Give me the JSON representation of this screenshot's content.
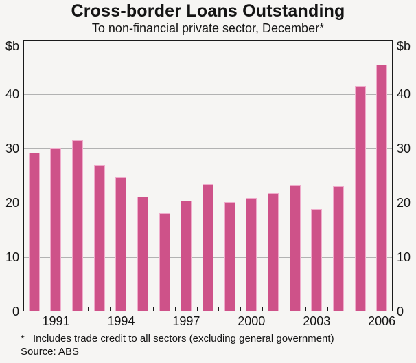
{
  "header": {
    "title": "Cross-border Loans Outstanding",
    "subtitle": "To non-financial private sector, December*"
  },
  "chart_data": {
    "type": "bar",
    "title": "Cross-border Loans Outstanding",
    "subtitle": "To non-financial private sector, December*",
    "x": [
      1990,
      1991,
      1992,
      1993,
      1994,
      1995,
      1996,
      1997,
      1998,
      1999,
      2000,
      2001,
      2002,
      2003,
      2004,
      2005,
      2006
    ],
    "values": [
      29.3,
      30.0,
      31.5,
      27.0,
      24.7,
      21.1,
      18.1,
      20.4,
      23.4,
      20.1,
      20.9,
      21.8,
      23.3,
      18.8,
      23.1,
      41.5,
      45.5
    ],
    "ylabel_left": "$b",
    "ylabel_right": "$b",
    "ylim": [
      0,
      50
    ],
    "yticks": [
      0,
      10,
      20,
      30,
      40
    ],
    "x_axis_labels": [
      1991,
      1994,
      1997,
      2000,
      2003,
      2006
    ],
    "grid": true,
    "legend": "none",
    "bar_color": "#ce5289",
    "bar_edge_color": "#efaccb",
    "gridline_color": "#b2b2b2",
    "axis_color": "#1a1a1a"
  },
  "footnote": {
    "marker": "*",
    "text": "Includes trade credit to all sectors (excluding general government)",
    "source": "Source: ABS"
  }
}
